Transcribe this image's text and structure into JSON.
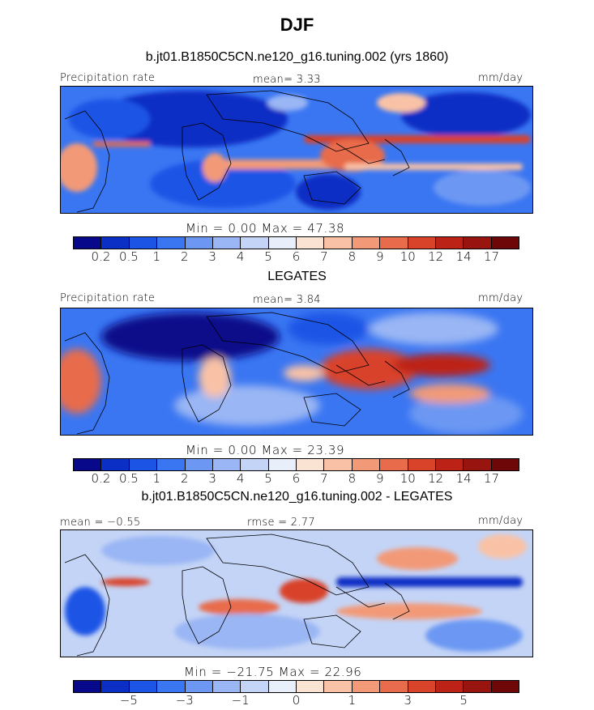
{
  "figure": {
    "title": "DJF"
  },
  "panels": [
    {
      "title": "b.jt01.B1850C5CN.ne120_g16.tuning.002 (yrs 1860)",
      "left_label": "Precipitation rate",
      "center_label": "mean=   3.33",
      "right_label": "mm/day",
      "stats": "Min =    0.00  Max =   47.38"
    },
    {
      "title": "LEGATES",
      "left_label": "Precipitation rate",
      "center_label": "mean=   3.84",
      "right_label": "mm/day",
      "stats": "Min =    0.00  Max =   23.39"
    },
    {
      "title": "b.jt01.B1850C5CN.ne120_g16.tuning.002 - LEGATES",
      "left_label": "mean =  −0.55",
      "center_label": "rmse =    2.77",
      "right_label": "mm/day",
      "stats": "Min = −21.75  Max =   22.96"
    }
  ],
  "chart_data": [
    {
      "type": "heatmap",
      "title": "b.jt01.B1850C5CN.ne120_g16.tuning.002 (yrs 1860)",
      "variable": "Precipitation rate",
      "units": "mm/day",
      "mean": 3.33,
      "min": 0.0,
      "max": 47.38,
      "colorbar_levels": [
        "0.2",
        "0.5",
        "1",
        "2",
        "3",
        "4",
        "5",
        "6",
        "7",
        "8",
        "9",
        "10",
        "12",
        "14",
        "17"
      ],
      "colorbar_colors": [
        "#08088a",
        "#0b2fc4",
        "#1c55e6",
        "#3a76f2",
        "#6c98f3",
        "#9ab6f4",
        "#c4d4f6",
        "#e8eefa",
        "#fbe3d4",
        "#f9c2a6",
        "#f29a78",
        "#e86c4b",
        "#d9432a",
        "#bd2216",
        "#97140f",
        "#6e0707"
      ]
    },
    {
      "type": "heatmap",
      "title": "LEGATES",
      "variable": "Precipitation rate",
      "units": "mm/day",
      "mean": 3.84,
      "min": 0.0,
      "max": 23.39,
      "colorbar_levels": [
        "0.2",
        "0.5",
        "1",
        "2",
        "3",
        "4",
        "5",
        "6",
        "7",
        "8",
        "9",
        "10",
        "12",
        "14",
        "17"
      ],
      "colorbar_colors": [
        "#08088a",
        "#0b2fc4",
        "#1c55e6",
        "#3a76f2",
        "#6c98f3",
        "#9ab6f4",
        "#c4d4f6",
        "#e8eefa",
        "#fbe3d4",
        "#f9c2a6",
        "#f29a78",
        "#e86c4b",
        "#d9432a",
        "#bd2216",
        "#97140f",
        "#6e0707"
      ]
    },
    {
      "type": "heatmap",
      "title": "b.jt01.B1850C5CN.ne120_g16.tuning.002 - LEGATES",
      "units": "mm/day",
      "mean": -0.55,
      "rmse": 2.77,
      "min": -21.75,
      "max": 22.96,
      "colorbar_labels": [
        "−5",
        "−3",
        "−1",
        "0",
        "1",
        "3",
        "5"
      ],
      "colorbar_colors": [
        "#08088a",
        "#0b2fc4",
        "#1c55e6",
        "#3a76f2",
        "#6c98f3",
        "#9ab6f4",
        "#c4d4f6",
        "#e8eefa",
        "#fbe3d4",
        "#f9c2a6",
        "#f29a78",
        "#e86c4b",
        "#d9432a",
        "#bd2216",
        "#97140f",
        "#6e0707"
      ]
    }
  ]
}
